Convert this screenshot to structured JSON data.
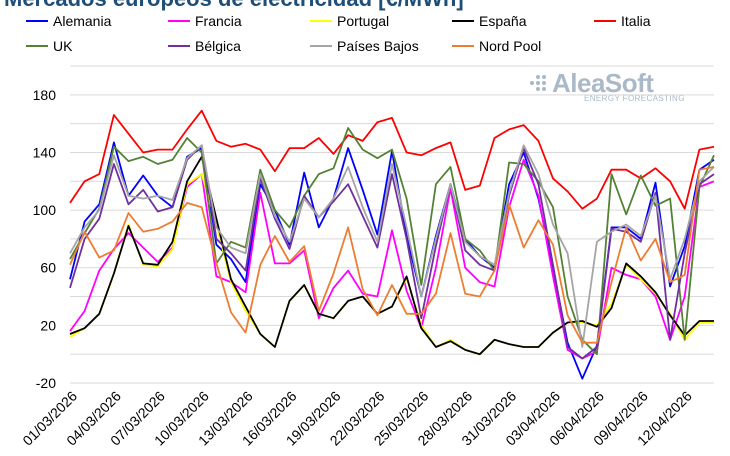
{
  "title": "Mercados europeos de electricidad [€/MWh]",
  "logo": {
    "main": "AleaSoft",
    "sub": "ENERGY FORECASTING"
  },
  "colors": {
    "grid": "#d9d9d9",
    "axis": "#7f7f7f",
    "logo": "#aab8c8",
    "title": "#1f4e79"
  },
  "chart_data": {
    "type": "line",
    "title": "Mercados europeos de electricidad [€/MWh]",
    "xlabel": "",
    "ylabel": "",
    "ylim": [
      -20,
      200
    ],
    "yticks": [
      -20,
      20,
      60,
      100,
      140,
      180
    ],
    "grid": true,
    "legend_position": "top",
    "x_tick_labels": [
      "01/03/2026",
      "04/03/2026",
      "07/03/2026",
      "10/03/2026",
      "13/03/2026",
      "16/03/2026",
      "19/03/2026",
      "22/03/2026",
      "25/03/2026",
      "28/03/2026",
      "31/03/2026",
      "03/04/2026",
      "06/04/2026",
      "09/04/2026",
      "12/04/2026"
    ],
    "x_tick_every": 3,
    "n_points": 45,
    "series": [
      {
        "name": "Alemania",
        "color": "#0000ff",
        "values": [
          52,
          92,
          104,
          147,
          110,
          124,
          110,
          102,
          137,
          143,
          76,
          66,
          50,
          118,
          100,
          76,
          126,
          88,
          108,
          143,
          114,
          83,
          141,
          82,
          40,
          82,
          118,
          80,
          68,
          60,
          118,
          140,
          108,
          60,
          8,
          -17,
          6,
          88,
          88,
          80,
          119,
          47,
          75,
          128,
          135
        ]
      },
      {
        "name": "Francia",
        "color": "#ff00ff",
        "values": [
          16,
          30,
          58,
          73,
          84,
          74,
          64,
          74,
          116,
          125,
          54,
          50,
          43,
          112,
          63,
          63,
          72,
          25,
          46,
          58,
          42,
          40,
          86,
          44,
          18,
          60,
          115,
          60,
          50,
          47,
          102,
          135,
          110,
          54,
          3,
          -3,
          2,
          60,
          55,
          52,
          40,
          10,
          40,
          116,
          120
        ]
      },
      {
        "name": "Portugal",
        "color": "#ffff00",
        "values": [
          12,
          18,
          28,
          56,
          90,
          62,
          61,
          73,
          118,
          125,
          90,
          50,
          30,
          14,
          5,
          37,
          48,
          28,
          25,
          37,
          40,
          28,
          33,
          53,
          20,
          5,
          10,
          3,
          0,
          10,
          7,
          5,
          5,
          15,
          22,
          22,
          20,
          35,
          62,
          52,
          42,
          28,
          10,
          22,
          22
        ]
      },
      {
        "name": "España",
        "color": "#000000",
        "values": [
          14,
          18,
          28,
          56,
          89,
          63,
          62,
          78,
          120,
          137,
          94,
          52,
          33,
          14,
          5,
          37,
          48,
          28,
          25,
          37,
          40,
          28,
          33,
          54,
          18,
          5,
          9,
          3,
          0,
          10,
          7,
          5,
          5,
          15,
          22,
          23,
          19,
          32,
          63,
          54,
          43,
          27,
          13,
          23,
          23
        ]
      },
      {
        "name": "Italia",
        "color": "#ff0000",
        "values": [
          105,
          120,
          125,
          166,
          153,
          140,
          142,
          142,
          156,
          169,
          148,
          144,
          146,
          142,
          127,
          143,
          143,
          150,
          139,
          152,
          148,
          161,
          164,
          140,
          138,
          143,
          147,
          114,
          117,
          150,
          156,
          159,
          148,
          122,
          113,
          101,
          108,
          128,
          128,
          122,
          129,
          120,
          101,
          142,
          144
        ]
      },
      {
        "name": "UK",
        "color": "#548235",
        "values": [
          66,
          84,
          101,
          144,
          134,
          137,
          132,
          135,
          150,
          140,
          63,
          78,
          74,
          128,
          100,
          88,
          110,
          125,
          129,
          157,
          142,
          136,
          142,
          108,
          48,
          118,
          130,
          80,
          72,
          58,
          133,
          132,
          120,
          102,
          40,
          10,
          0,
          125,
          97,
          124,
          103,
          108,
          10,
          116,
          138
        ]
      },
      {
        "name": "Bélgica",
        "color": "#7030a0",
        "values": [
          46,
          80,
          94,
          132,
          104,
          114,
          99,
          102,
          135,
          145,
          80,
          70,
          58,
          122,
          94,
          73,
          110,
          95,
          106,
          118,
          96,
          74,
          125,
          80,
          25,
          75,
          118,
          72,
          62,
          58,
          110,
          143,
          118,
          62,
          5,
          -3,
          5,
          87,
          85,
          78,
          112,
          10,
          70,
          118,
          125
        ]
      },
      {
        "name": "Países Bajos",
        "color": "#a5a5a5",
        "values": [
          70,
          88,
          100,
          138,
          110,
          108,
          110,
          107,
          136,
          145,
          88,
          74,
          70,
          125,
          96,
          78,
          108,
          95,
          108,
          130,
          102,
          78,
          132,
          88,
          40,
          80,
          118,
          78,
          68,
          62,
          112,
          145,
          125,
          90,
          70,
          5,
          78,
          85,
          90,
          82,
          110,
          52,
          80,
          120,
          130
        ]
      },
      {
        "name": "Nord Pool",
        "color": "#ed7d31",
        "values": [
          62,
          85,
          67,
          72,
          98,
          85,
          87,
          92,
          105,
          102,
          63,
          29,
          15,
          62,
          82,
          64,
          75,
          30,
          56,
          88,
          45,
          27,
          48,
          28,
          28,
          42,
          84,
          42,
          40,
          58,
          104,
          74,
          93,
          76,
          27,
          8,
          8,
          50,
          88,
          65,
          80,
          50,
          55,
          128,
          130
        ]
      }
    ]
  }
}
